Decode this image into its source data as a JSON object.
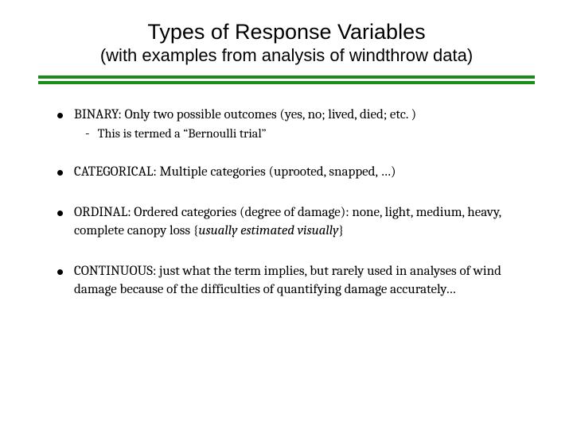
{
  "title": "Types of Response Variables",
  "subtitle": "(with examples from analysis of windthrow data)",
  "divider": {
    "color1": "#1a8c1a",
    "color2": "#1a8c1a",
    "gap_color": "#ffffff"
  },
  "bullets": [
    {
      "text": "BINARY: Only two possible outcomes  (yes, no;  lived, died; etc. )",
      "sub": {
        "dash": "-",
        "text": "This is termed a “Bernoulli trial”"
      }
    },
    {
      "text": "CATEGORICAL: Multiple categories (uprooted, snapped, …)"
    },
    {
      "text_parts": [
        {
          "t": "ORDINAL: Ordered categories (degree of damage): none, light, medium, heavy, complete canopy loss  {",
          "italic": false
        },
        {
          "t": "usually estimated visually",
          "italic": true
        },
        {
          "t": "}",
          "italic": false
        }
      ]
    },
    {
      "text": "CONTINUOUS:  just what the term implies, but rarely used in analyses of wind damage because of the difficulties of quantifying damage accurately…"
    }
  ],
  "style": {
    "background_color": "#ffffff",
    "title_fontsize": 27,
    "subtitle_fontsize": 22,
    "body_fontsize": 17,
    "sub_fontsize": 16,
    "bullet_color": "#000000",
    "text_color": "#000000"
  }
}
